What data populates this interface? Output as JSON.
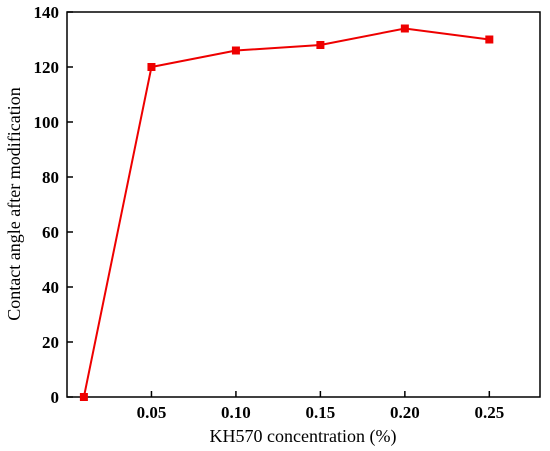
{
  "chart_data": {
    "type": "line",
    "xlabel": "KH570 concentration (%)",
    "ylabel": "Contact angle after modification",
    "xlim": [
      0.0,
      0.28
    ],
    "ylim": [
      0,
      140
    ],
    "x_ticks": [
      0.05,
      0.1,
      0.15,
      0.2,
      0.25
    ],
    "x_tick_labels": [
      "0.05",
      "0.10",
      "0.15",
      "0.20",
      "0.25"
    ],
    "y_ticks": [
      0,
      20,
      40,
      60,
      80,
      100,
      120,
      140
    ],
    "y_tick_labels": [
      "0",
      "20",
      "40",
      "60",
      "80",
      "100",
      "120",
      "140"
    ],
    "grid": false,
    "series": [
      {
        "color": "#ee0000",
        "marker": "square",
        "x": [
          0.01,
          0.05,
          0.1,
          0.15,
          0.2,
          0.25
        ],
        "y": [
          0,
          120,
          126,
          128,
          134,
          130
        ]
      }
    ]
  }
}
